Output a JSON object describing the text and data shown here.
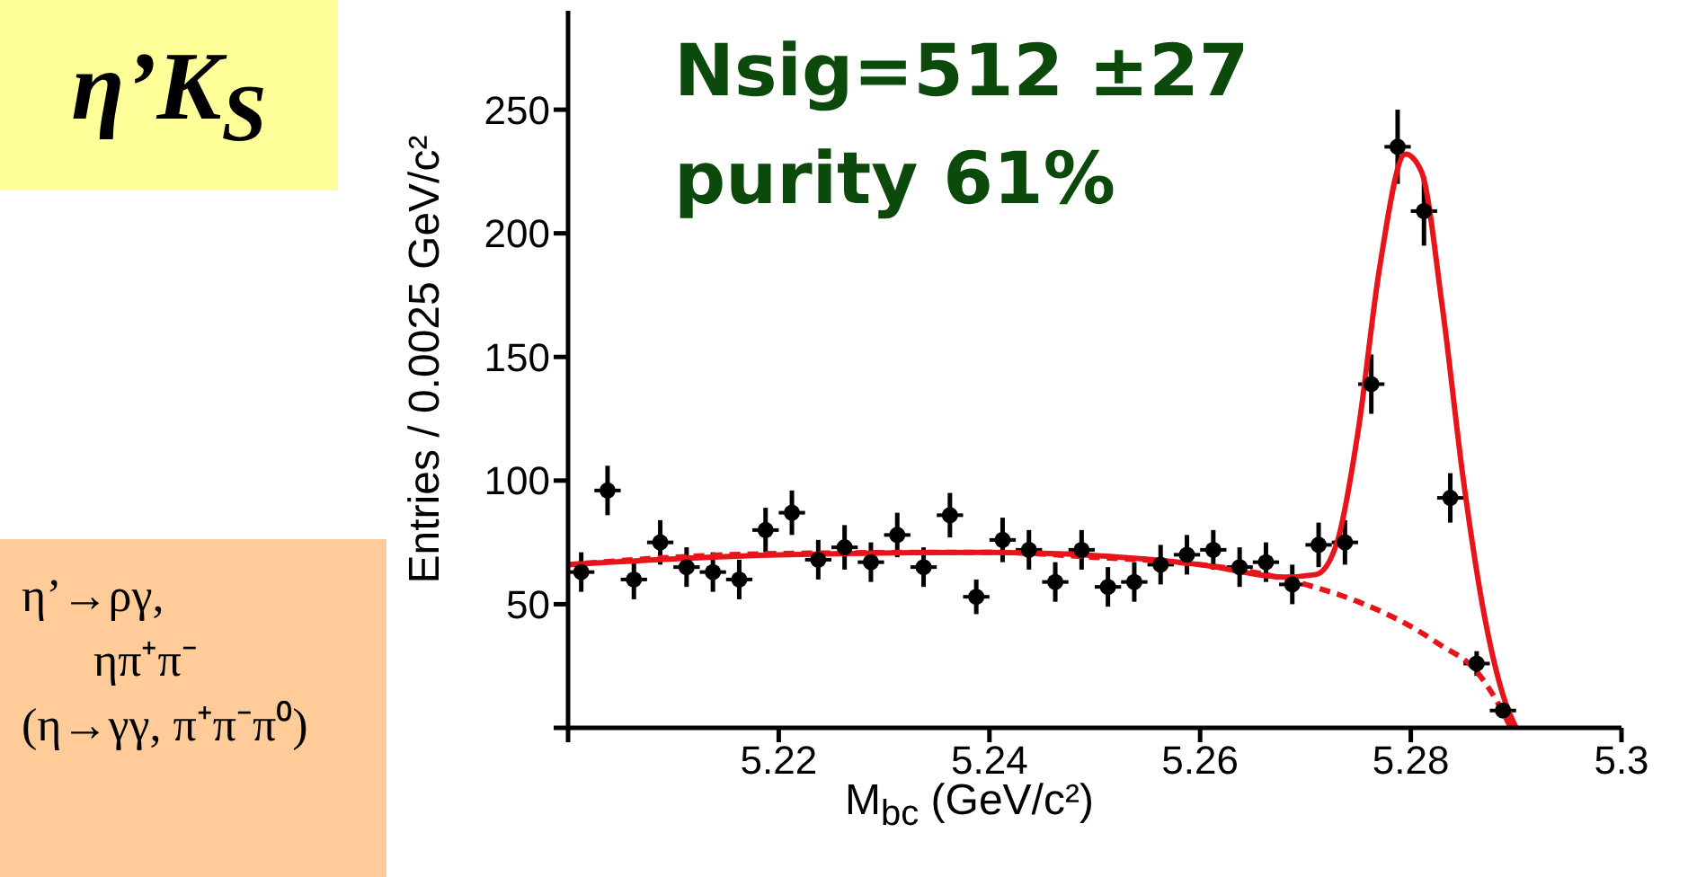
{
  "chart_data": {
    "type": "scatter",
    "title": "η’K$_{S}$",
    "xlabel": "M$_{bc}$ (GeV/c²)",
    "ylabel": "Entries / 0.0025 GeV/c²",
    "xlim": [
      5.2,
      5.3
    ],
    "xticks": [
      {
        "value": 5.2,
        "label": null
      },
      5.22,
      5.24,
      5.26,
      5.28,
      5.3
    ],
    "ylim": [
      0,
      290
    ],
    "yticks": [
      {
        "value": 0,
        "label": null
      },
      50,
      100,
      150,
      200,
      250
    ],
    "annotations": [
      "Nsig=512 ±27",
      "purity 61%",
      "η’→ργ,",
      "ηπ⁺π⁻",
      "(η→γγ, π⁺π⁻π⁰)"
    ],
    "series": [
      {
        "color": "#000000",
        "marker": "circle",
        "x": [
          5.20125,
          5.20375,
          5.20625,
          5.20875,
          5.21125,
          5.21375,
          5.21625,
          5.21875,
          5.22125,
          5.22375,
          5.22625,
          5.22875,
          5.23125,
          5.23375,
          5.23625,
          5.23875,
          5.24125,
          5.24375,
          5.24625,
          5.24875,
          5.25125,
          5.25375,
          5.25625,
          5.25875,
          5.26125,
          5.26375,
          5.26625,
          5.26875,
          5.27125,
          5.27375,
          5.27625,
          5.27875,
          5.28125,
          5.28375,
          5.28625,
          5.28875
        ],
        "values": [
          63,
          96,
          60,
          75,
          65,
          63,
          60,
          80,
          87,
          68,
          73,
          67,
          78,
          65,
          86,
          53,
          76,
          72,
          59,
          72,
          57,
          59,
          66,
          70,
          72,
          65,
          67,
          58,
          74,
          75,
          139,
          235,
          209,
          93,
          26,
          7
        ],
        "errors": [
          8,
          10,
          8,
          9,
          8,
          8,
          8,
          9,
          9,
          8,
          9,
          8,
          9,
          8,
          9,
          7,
          9,
          8,
          8,
          8,
          8,
          8,
          8,
          8,
          8,
          8,
          8,
          8,
          9,
          9,
          12,
          15,
          14,
          10,
          5,
          3
        ],
        "xerrors": [
          0.00125,
          0.00125,
          0.00125,
          0.00125,
          0.00125,
          0.00125,
          0.00125,
          0.00125,
          0.00125,
          0.00125,
          0.00125,
          0.00125,
          0.00125,
          0.00125,
          0.00125,
          0.00125,
          0.00125,
          0.00125,
          0.00125,
          0.00125,
          0.00125,
          0.00125,
          0.00125,
          0.00125,
          0.00125,
          0.00125,
          0.00125,
          0.00125,
          0.00125,
          0.00125,
          0.00125,
          0.00125,
          0.00125,
          0.00125,
          0.00125,
          0.00125
        ]
      },
      {
        "type": "line",
        "color": "#e8141c",
        "line_style": "solid",
        "x": [
          5.2,
          5.22,
          5.24,
          5.26,
          5.268,
          5.271,
          5.273,
          5.275,
          5.277,
          5.2795,
          5.281,
          5.283,
          5.285,
          5.287,
          5.289,
          5.29
        ],
        "values": [
          66,
          70,
          71,
          66,
          61,
          62,
          75,
          120,
          185,
          232,
          225,
          170,
          100,
          45,
          10,
          0
        ]
      },
      {
        "type": "line",
        "color": "#e8141c",
        "line_style": "dashed",
        "x": [
          5.2,
          5.21,
          5.22,
          5.24,
          5.25,
          5.26,
          5.265,
          5.27,
          5.275,
          5.28,
          5.283,
          5.286,
          5.288,
          5.2895
        ],
        "values": [
          66,
          69,
          70.5,
          71,
          69,
          66,
          63,
          58,
          51,
          41,
          33,
          24,
          12,
          0
        ]
      }
    ]
  }
}
